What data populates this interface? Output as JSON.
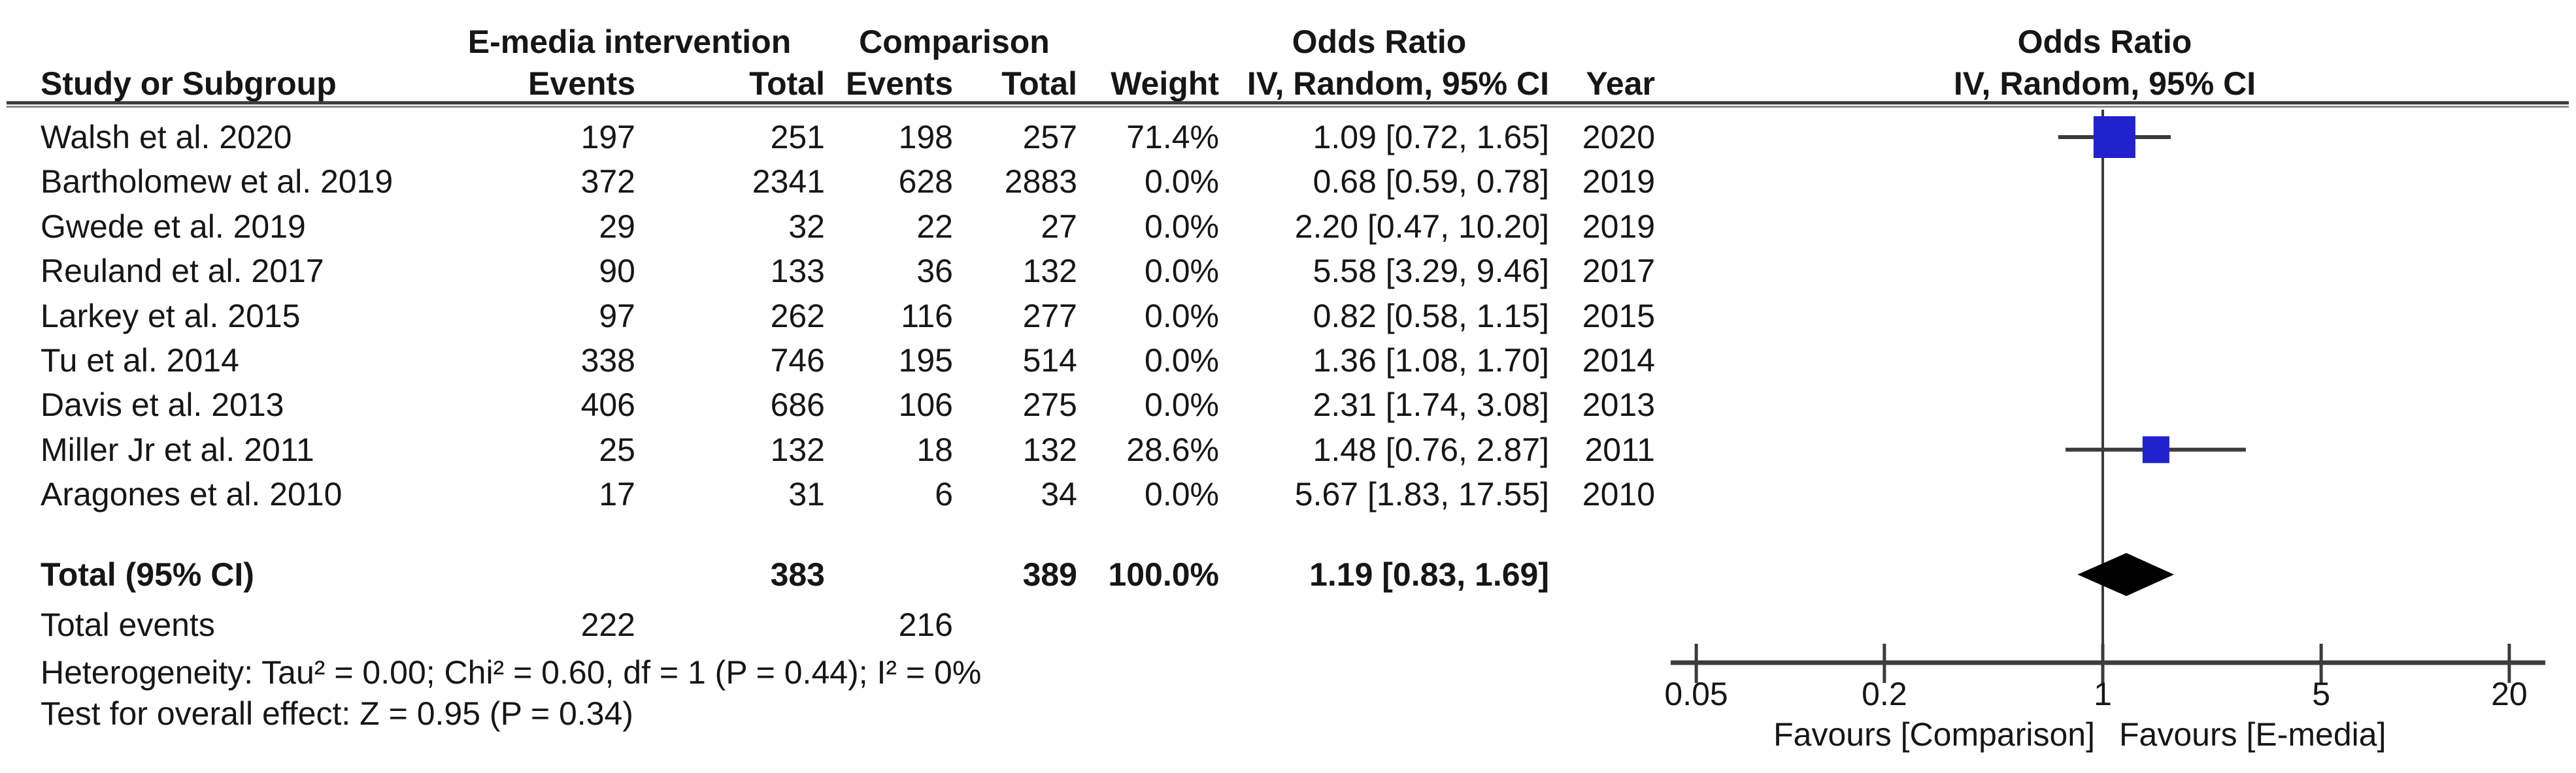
{
  "header": {
    "group_intervention": "E-media intervention",
    "group_comparison": "Comparison",
    "group_odds_ratio": "Odds Ratio",
    "col_study": "Study or Subgroup",
    "col_events": "Events",
    "col_total": "Total",
    "col_weight": "Weight",
    "col_ci": "IV, Random, 95% CI",
    "col_year": "Year",
    "plot_title_line1": "Odds Ratio",
    "plot_title_line2": "IV, Random, 95% CI"
  },
  "rows": [
    {
      "study": "Walsh et al. 2020",
      "e1": "197",
      "t1": "251",
      "e2": "198",
      "t2": "257",
      "weight": "71.4%",
      "ci": "1.09 [0.72, 1.65]",
      "year": "2020"
    },
    {
      "study": "Bartholomew et al. 2019",
      "e1": "372",
      "t1": "2341",
      "e2": "628",
      "t2": "2883",
      "weight": "0.0%",
      "ci": "0.68 [0.59, 0.78]",
      "year": "2019"
    },
    {
      "study": "Gwede et al. 2019",
      "e1": "29",
      "t1": "32",
      "e2": "22",
      "t2": "27",
      "weight": "0.0%",
      "ci": "2.20 [0.47, 10.20]",
      "year": "2019"
    },
    {
      "study": "Reuland et al. 2017",
      "e1": "90",
      "t1": "133",
      "e2": "36",
      "t2": "132",
      "weight": "0.0%",
      "ci": "5.58 [3.29, 9.46]",
      "year": "2017"
    },
    {
      "study": "Larkey et al. 2015",
      "e1": "97",
      "t1": "262",
      "e2": "116",
      "t2": "277",
      "weight": "0.0%",
      "ci": "0.82 [0.58, 1.15]",
      "year": "2015"
    },
    {
      "study": "Tu et al. 2014",
      "e1": "338",
      "t1": "746",
      "e2": "195",
      "t2": "514",
      "weight": "0.0%",
      "ci": "1.36 [1.08, 1.70]",
      "year": "2014"
    },
    {
      "study": "Davis et al. 2013",
      "e1": "406",
      "t1": "686",
      "e2": "106",
      "t2": "275",
      "weight": "0.0%",
      "ci": "2.31 [1.74, 3.08]",
      "year": "2013"
    },
    {
      "study": "Miller Jr et al. 2011",
      "e1": "25",
      "t1": "132",
      "e2": "18",
      "t2": "132",
      "weight": "28.6%",
      "ci": "1.48 [0.76, 2.87]",
      "year": "2011"
    },
    {
      "study": "Aragones et al. 2010",
      "e1": "17",
      "t1": "31",
      "e2": "6",
      "t2": "34",
      "weight": "0.0%",
      "ci": "5.67 [1.83, 17.55]",
      "year": "2010"
    }
  ],
  "totals": {
    "label": "Total (95% CI)",
    "total1": "383",
    "total2": "389",
    "weight": "100.0%",
    "ci": "1.19 [0.83, 1.69]",
    "events_label": "Total events",
    "events1": "222",
    "events2": "216",
    "heterogeneity": "Heterogeneity: Tau² = 0.00; Chi² = 0.60, df = 1 (P = 0.44); I² = 0%",
    "overall_effect": "Test for overall effect: Z = 0.95 (P = 0.34)"
  },
  "axis": {
    "favours_left": "Favours [Comparison]",
    "favours_right": "Favours [E-media]"
  },
  "colors": {
    "marker_blue": "#2121CE",
    "line_gray": "#3c3c3c",
    "diamond_black": "#000000"
  },
  "chart_data": {
    "type": "scatter",
    "subtype": "forest-plot",
    "effect_measure": "Odds Ratio, IV, Random, 95% CI",
    "x_scale": "log",
    "xlim": [
      0.05,
      20
    ],
    "x_ticks": [
      {
        "label": "0.05",
        "value": 0.05
      },
      {
        "label": "0.2",
        "value": 0.2
      },
      {
        "label": "1",
        "value": 1
      },
      {
        "label": "5",
        "value": 5
      },
      {
        "label": "20",
        "value": 20
      }
    ],
    "studies": [
      {
        "name": "Walsh et al. 2020",
        "or": 1.09,
        "lo": 0.72,
        "hi": 1.65,
        "weight": 71.4,
        "year": 2020
      },
      {
        "name": "Bartholomew et al. 2019",
        "or": 0.68,
        "lo": 0.59,
        "hi": 0.78,
        "weight": 0.0,
        "year": 2019
      },
      {
        "name": "Gwede et al. 2019",
        "or": 2.2,
        "lo": 0.47,
        "hi": 10.2,
        "weight": 0.0,
        "year": 2019
      },
      {
        "name": "Reuland et al. 2017",
        "or": 5.58,
        "lo": 3.29,
        "hi": 9.46,
        "weight": 0.0,
        "year": 2017
      },
      {
        "name": "Larkey et al. 2015",
        "or": 0.82,
        "lo": 0.58,
        "hi": 1.15,
        "weight": 0.0,
        "year": 2015
      },
      {
        "name": "Tu et al. 2014",
        "or": 1.36,
        "lo": 1.08,
        "hi": 1.7,
        "weight": 0.0,
        "year": 2014
      },
      {
        "name": "Davis et al. 2013",
        "or": 2.31,
        "lo": 1.74,
        "hi": 3.08,
        "weight": 0.0,
        "year": 2013
      },
      {
        "name": "Miller Jr et al. 2011",
        "or": 1.48,
        "lo": 0.76,
        "hi": 2.87,
        "weight": 28.6,
        "year": 2011
      },
      {
        "name": "Aragones et al. 2010",
        "or": 5.67,
        "lo": 1.83,
        "hi": 17.55,
        "weight": 0.0,
        "year": 2010
      }
    ],
    "total": {
      "or": 1.19,
      "lo": 0.83,
      "hi": 1.69
    }
  }
}
